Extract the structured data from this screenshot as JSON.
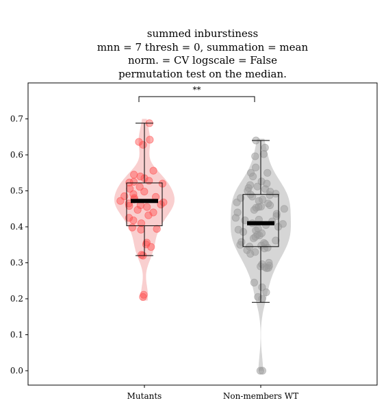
{
  "chart_data": {
    "type": "violin",
    "title_lines": [
      "summed inburstiness",
      "mnn = 7 thresh = 0, summation = mean",
      "norm. = CV logscale = False",
      "permutation test on the median."
    ],
    "xlabel": "",
    "ylabel": "",
    "categories": [
      "Mutants",
      "Non-members WT"
    ],
    "ylim": [
      -0.04,
      0.79
    ],
    "yticks": [
      "0.0",
      "0.1",
      "0.2",
      "0.3",
      "0.4",
      "0.5",
      "0.6",
      "0.7"
    ],
    "significance": {
      "between": [
        0,
        1
      ],
      "label": "**"
    },
    "overlays": [
      "violin",
      "boxplot",
      "median bar",
      "jittered points"
    ],
    "colors": {
      "mutants_violin": "#f9cfcf",
      "mutants_points": "#ff4d4d",
      "wt_violin": "#d6d6d6",
      "wt_points": "#9a9a9a",
      "box": "#000000",
      "median": "#000000"
    },
    "series": [
      {
        "name": "Mutants",
        "box": {
          "q1": 0.403,
          "median": 0.472,
          "q3": 0.522,
          "whisker_low": 0.32,
          "whisker_high": 0.688
        },
        "violin_range": [
          0.195,
          0.7
        ],
        "points": [
          0.688,
          0.642,
          0.636,
          0.628,
          0.556,
          0.545,
          0.54,
          0.535,
          0.528,
          0.525,
          0.523,
          0.52,
          0.511,
          0.506,
          0.498,
          0.491,
          0.485,
          0.483,
          0.48,
          0.476,
          0.472,
          0.468,
          0.465,
          0.462,
          0.46,
          0.458,
          0.455,
          0.447,
          0.44,
          0.432,
          0.425,
          0.418,
          0.41,
          0.398,
          0.394,
          0.392,
          0.356,
          0.351,
          0.344,
          0.322,
          0.32,
          0.211,
          0.205
        ]
      },
      {
        "name": "Non-members WT",
        "box": {
          "q1": 0.345,
          "median": 0.41,
          "q3": 0.49,
          "whisker_low": 0.19,
          "whisker_high": 0.64
        },
        "violin_range": [
          0.0,
          0.645
        ],
        "points": [
          0.64,
          0.62,
          0.602,
          0.596,
          0.565,
          0.55,
          0.55,
          0.54,
          0.526,
          0.52,
          0.516,
          0.512,
          0.508,
          0.505,
          0.5,
          0.498,
          0.492,
          0.49,
          0.488,
          0.484,
          0.48,
          0.476,
          0.472,
          0.468,
          0.465,
          0.46,
          0.456,
          0.455,
          0.453,
          0.45,
          0.447,
          0.44,
          0.436,
          0.43,
          0.425,
          0.42,
          0.418,
          0.415,
          0.41,
          0.408,
          0.405,
          0.4,
          0.395,
          0.392,
          0.39,
          0.386,
          0.382,
          0.378,
          0.376,
          0.372,
          0.368,
          0.362,
          0.358,
          0.355,
          0.352,
          0.35,
          0.348,
          0.345,
          0.342,
          0.34,
          0.335,
          0.33,
          0.325,
          0.3,
          0.296,
          0.292,
          0.29,
          0.288,
          0.286,
          0.285,
          0.245,
          0.232,
          0.218,
          0.205,
          0.2,
          0.0,
          0.0
        ]
      }
    ]
  }
}
